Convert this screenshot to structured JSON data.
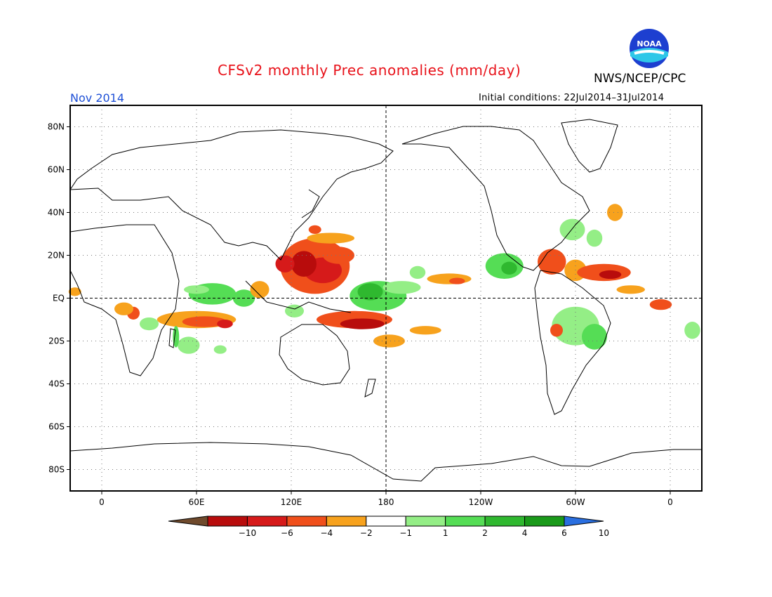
{
  "title": "CFSv2 monthly Prec anomalies (mm/day)",
  "agency": "NWS/NCEP/CPC",
  "logo_text": "NOAA",
  "valid_month": "Nov 2014",
  "initial_conditions": "Initial conditions: 22Jul2014–31Jul2014",
  "map": {
    "lon_range": [
      -20,
      380
    ],
    "lat_range": [
      -90,
      90
    ],
    "grid": true,
    "equator_line": "EQ",
    "dateline_dashed": true,
    "lat_ticks": [
      {
        "lat": 80,
        "label": "80N"
      },
      {
        "lat": 60,
        "label": "60N"
      },
      {
        "lat": 40,
        "label": "40N"
      },
      {
        "lat": 20,
        "label": "20N"
      },
      {
        "lat": 0,
        "label": "EQ"
      },
      {
        "lat": -20,
        "label": "20S"
      },
      {
        "lat": -40,
        "label": "40S"
      },
      {
        "lat": -60,
        "label": "60S"
      },
      {
        "lat": -80,
        "label": "80S"
      }
    ],
    "lon_ticks": [
      {
        "lon": 0,
        "label": "0"
      },
      {
        "lon": 60,
        "label": "60E"
      },
      {
        "lon": 120,
        "label": "120E"
      },
      {
        "lon": 180,
        "label": "180"
      },
      {
        "lon": 240,
        "label": "120W"
      },
      {
        "lon": 300,
        "label": "60W"
      },
      {
        "lon": 360,
        "label": "0"
      }
    ]
  },
  "colorbar": {
    "colors": [
      "#6f4a2c",
      "#b80c0c",
      "#d61a1a",
      "#f04f1b",
      "#f7a21d",
      "#ffffff",
      "#94ee86",
      "#55dd55",
      "#2fb82f",
      "#1a9a1a",
      "#2a6fe0"
    ],
    "labels": [
      "-10",
      "-6",
      "-4",
      "-2",
      "-1",
      "1",
      "2",
      "4",
      "6",
      "10"
    ]
  },
  "anomalies": [
    {
      "lon": 20,
      "lat": -7,
      "rx": 4,
      "ry": 3,
      "c": "#f04f1b"
    },
    {
      "lon": 14,
      "lat": -5,
      "rx": 6,
      "ry": 3,
      "c": "#f7a21d"
    },
    {
      "lon": -17,
      "lat": 3,
      "rx": 4,
      "ry": 2,
      "c": "#f7a21d"
    },
    {
      "lon": 60,
      "lat": -10,
      "rx": 25,
      "ry": 4,
      "c": "#f7a21d"
    },
    {
      "lon": 65,
      "lat": -11,
      "rx": 14,
      "ry": 2.5,
      "c": "#f04f1b"
    },
    {
      "lon": 78,
      "lat": -12,
      "rx": 5,
      "ry": 2,
      "c": "#d61a1a"
    },
    {
      "lon": 70,
      "lat": 2,
      "rx": 15,
      "ry": 5,
      "c": "#55dd55"
    },
    {
      "lon": 60,
      "lat": 4,
      "rx": 8,
      "ry": 2,
      "c": "#94ee86"
    },
    {
      "lon": 90,
      "lat": 0,
      "rx": 7,
      "ry": 4,
      "c": "#55dd55"
    },
    {
      "lon": 55,
      "lat": -22,
      "rx": 7,
      "ry": 4,
      "c": "#94ee86"
    },
    {
      "lon": 75,
      "lat": -24,
      "rx": 4,
      "ry": 2,
      "c": "#94ee86"
    },
    {
      "lon": 30,
      "lat": -12,
      "rx": 6,
      "ry": 3,
      "c": "#94ee86"
    },
    {
      "lon": 47,
      "lat": -18,
      "rx": 2,
      "ry": 5,
      "c": "#55dd55"
    },
    {
      "lon": 135,
      "lat": 15,
      "rx": 22,
      "ry": 13,
      "c": "#f04f1b"
    },
    {
      "lon": 140,
      "lat": 13,
      "rx": 12,
      "ry": 6,
      "c": "#d61a1a"
    },
    {
      "lon": 128,
      "lat": 16,
      "rx": 8,
      "ry": 6,
      "c": "#b80c0c"
    },
    {
      "lon": 116,
      "lat": 16,
      "rx": 6,
      "ry": 4,
      "c": "#d61a1a"
    },
    {
      "lon": 145,
      "lat": 28,
      "rx": 15,
      "ry": 2.5,
      "c": "#f7a21d"
    },
    {
      "lon": 135,
      "lat": 32,
      "rx": 4,
      "ry": 2,
      "c": "#f04f1b"
    },
    {
      "lon": 150,
      "lat": 20,
      "rx": 10,
      "ry": 4,
      "c": "#f04f1b"
    },
    {
      "lon": 175,
      "lat": 1,
      "rx": 18,
      "ry": 7,
      "c": "#55dd55"
    },
    {
      "lon": 170,
      "lat": 3,
      "rx": 8,
      "ry": 4,
      "c": "#2fb82f"
    },
    {
      "lon": 190,
      "lat": 5,
      "rx": 12,
      "ry": 3,
      "c": "#94ee86"
    },
    {
      "lon": 200,
      "lat": 12,
      "rx": 5,
      "ry": 3,
      "c": "#94ee86"
    },
    {
      "lon": 160,
      "lat": -10,
      "rx": 24,
      "ry": 4,
      "c": "#f04f1b"
    },
    {
      "lon": 165,
      "lat": -12,
      "rx": 14,
      "ry": 2.5,
      "c": "#b80c0c"
    },
    {
      "lon": 182,
      "lat": -20,
      "rx": 10,
      "ry": 3,
      "c": "#f7a21d"
    },
    {
      "lon": 205,
      "lat": -15,
      "rx": 10,
      "ry": 2,
      "c": "#f7a21d"
    },
    {
      "lon": 100,
      "lat": 4,
      "rx": 6,
      "ry": 4,
      "c": "#f7a21d"
    },
    {
      "lon": 220,
      "lat": 9,
      "rx": 14,
      "ry": 2.5,
      "c": "#f7a21d"
    },
    {
      "lon": 225,
      "lat": 8,
      "rx": 5,
      "ry": 1.5,
      "c": "#f04f1b"
    },
    {
      "lon": 255,
      "lat": 15,
      "rx": 12,
      "ry": 6,
      "c": "#55dd55"
    },
    {
      "lon": 258,
      "lat": 14,
      "rx": 5,
      "ry": 3,
      "c": "#2fb82f"
    },
    {
      "lon": 285,
      "lat": 17,
      "rx": 9,
      "ry": 6,
      "c": "#f04f1b"
    },
    {
      "lon": 300,
      "lat": 13,
      "rx": 7,
      "ry": 5,
      "c": "#f7a21d"
    },
    {
      "lon": 318,
      "lat": 12,
      "rx": 17,
      "ry": 4,
      "c": "#f04f1b"
    },
    {
      "lon": 322,
      "lat": 11,
      "rx": 7,
      "ry": 2,
      "c": "#b80c0c"
    },
    {
      "lon": 335,
      "lat": 4,
      "rx": 9,
      "ry": 2,
      "c": "#f7a21d"
    },
    {
      "lon": 298,
      "lat": 32,
      "rx": 8,
      "ry": 5,
      "c": "#94ee86"
    },
    {
      "lon": 312,
      "lat": 28,
      "rx": 5,
      "ry": 4,
      "c": "#94ee86"
    },
    {
      "lon": 325,
      "lat": 40,
      "rx": 5,
      "ry": 4,
      "c": "#f7a21d"
    },
    {
      "lon": 300,
      "lat": -13,
      "rx": 15,
      "ry": 9,
      "c": "#94ee86"
    },
    {
      "lon": 312,
      "lat": -18,
      "rx": 8,
      "ry": 6,
      "c": "#55dd55"
    },
    {
      "lon": 288,
      "lat": -15,
      "rx": 4,
      "ry": 3,
      "c": "#f04f1b"
    },
    {
      "lon": 354,
      "lat": -3,
      "rx": 7,
      "ry": 2.5,
      "c": "#f04f1b"
    },
    {
      "lon": 374,
      "lat": -15,
      "rx": 5,
      "ry": 4,
      "c": "#94ee86"
    },
    {
      "lon": 122,
      "lat": -6,
      "rx": 6,
      "ry": 3,
      "c": "#94ee86"
    }
  ]
}
